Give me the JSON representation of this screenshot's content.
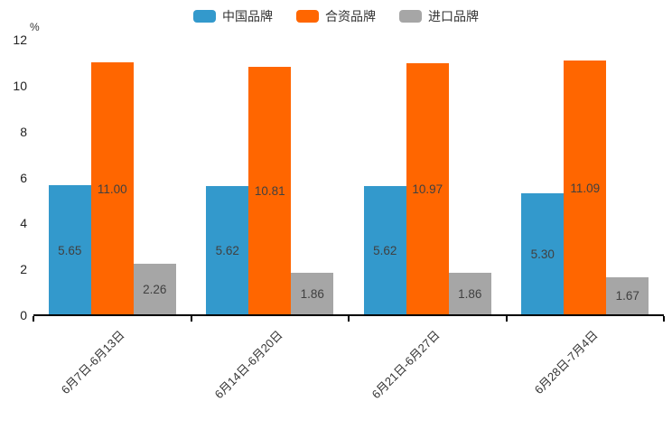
{
  "chart_data": {
    "type": "bar",
    "title": "",
    "xlabel": "",
    "ylabel": "%",
    "ylim": [
      0,
      12
    ],
    "y_ticks": [
      0,
      2,
      4,
      6,
      8,
      10,
      12
    ],
    "grid": false,
    "legend_position": "top-center",
    "value_labels": "inside-center, two decimals",
    "categories": [
      "6月7日-6月13日",
      "6月14日-6月20日",
      "6月21日-6月27日",
      "6月28日-7月4日"
    ],
    "series": [
      {
        "name": "中国品牌",
        "color": "#3399cc",
        "values": [
          5.65,
          5.62,
          5.62,
          5.3
        ]
      },
      {
        "name": "合资品牌",
        "color": "#ff6600",
        "values": [
          11.0,
          10.81,
          10.97,
          11.09
        ]
      },
      {
        "name": "进口品牌",
        "color": "#a6a6a6",
        "values": [
          2.26,
          1.86,
          1.86,
          1.67
        ]
      }
    ],
    "colors": {
      "axis_line": "#000000",
      "y_tick_label": "#222222",
      "x_tick_label": "#333333",
      "bar_value_label": "#404040",
      "background": "#ffffff"
    }
  }
}
